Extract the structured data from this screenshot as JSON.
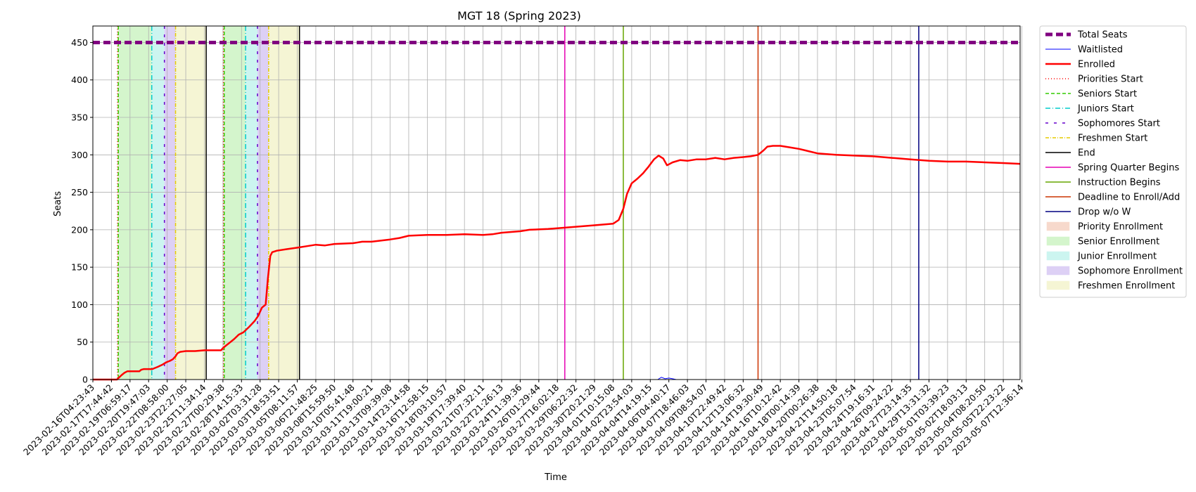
{
  "chart_data": {
    "type": "line",
    "title": "MGT 18 (Spring 2023)",
    "xlabel": "Time",
    "ylabel": "Seats",
    "ylim": [
      0,
      472
    ],
    "yticks": [
      0,
      50,
      100,
      150,
      200,
      250,
      300,
      350,
      400,
      450
    ],
    "grid": true,
    "legend_position": "outside right",
    "x_tick_labels": [
      "2023-02-16T04:23:43",
      "2023-02-17T17:44:42",
      "2023-02-19T06:59:17",
      "2023-02-20T19:47:03",
      "2023-02-22T08:58:00",
      "2023-02-23T22:27:05",
      "2023-02-25T11:34:14",
      "2023-02-27T00:29:38",
      "2023-02-28T14:15:33",
      "2023-03-02T03:31:28",
      "2023-03-03T18:53:51",
      "2023-03-05T08:11:57",
      "2023-03-06T21:48:25",
      "2023-03-08T15:59:50",
      "2023-03-10T05:41:48",
      "2023-03-11T19:00:21",
      "2023-03-13T09:39:08",
      "2023-03-14T23:14:58",
      "2023-03-16T12:58:15",
      "2023-03-18T03:10:57",
      "2023-03-19T17:39:40",
      "2023-03-21T07:32:11",
      "2023-03-22T21:26:13",
      "2023-03-24T11:39:36",
      "2023-03-26T01:29:44",
      "2023-03-27T16:02:18",
      "2023-03-29T06:22:32",
      "2023-03-30T20:21:29",
      "2023-04-01T10:15:08",
      "2023-04-02T23:54:03",
      "2023-04-04T14:19:15",
      "2023-04-06T04:40:17",
      "2023-04-07T18:46:03",
      "2023-04-09T08:54:07",
      "2023-04-10T22:49:42",
      "2023-04-12T13:06:32",
      "2023-04-14T19:30:49",
      "2023-04-16T10:12:42",
      "2023-04-18T00:14:39",
      "2023-04-20T00:26:38",
      "2023-04-21T14:50:18",
      "2023-04-23T05:07:54",
      "2023-04-24T19:16:31",
      "2023-04-26T09:24:22",
      "2023-04-27T23:14:35",
      "2023-04-29T13:31:32",
      "2023-05-01T03:39:23",
      "2023-05-02T18:03:13",
      "2023-05-04T08:20:50",
      "2023-05-05T22:23:22",
      "2023-05-07T12:36:14"
    ],
    "total_seats": 450,
    "enrolled": [
      [
        0,
        0
      ],
      [
        1.3,
        0
      ],
      [
        1.42,
        3
      ],
      [
        1.55,
        6
      ],
      [
        1.7,
        9
      ],
      [
        1.85,
        11
      ],
      [
        2.5,
        11
      ],
      [
        2.6,
        13
      ],
      [
        2.75,
        14
      ],
      [
        3.2,
        14
      ],
      [
        3.3,
        15
      ],
      [
        3.5,
        17
      ],
      [
        3.75,
        20
      ],
      [
        3.95,
        23
      ],
      [
        4.15,
        25
      ],
      [
        4.3,
        27
      ],
      [
        4.45,
        31
      ],
      [
        4.55,
        35
      ],
      [
        4.7,
        37
      ],
      [
        5.0,
        38
      ],
      [
        5.5,
        38
      ],
      [
        6.0,
        39
      ],
      [
        6.9,
        39
      ],
      [
        7.0,
        42
      ],
      [
        7.15,
        45
      ],
      [
        7.35,
        49
      ],
      [
        7.6,
        54
      ],
      [
        7.85,
        60
      ],
      [
        8.1,
        63
      ],
      [
        8.4,
        70
      ],
      [
        8.7,
        78
      ],
      [
        8.9,
        85
      ],
      [
        9.1,
        96
      ],
      [
        9.3,
        100
      ],
      [
        9.42,
        135
      ],
      [
        9.55,
        165
      ],
      [
        9.65,
        170
      ],
      [
        9.9,
        172
      ],
      [
        10.4,
        174
      ],
      [
        11,
        176
      ],
      [
        11.5,
        178
      ],
      [
        12,
        180
      ],
      [
        12.5,
        179
      ],
      [
        13,
        181
      ],
      [
        14,
        182
      ],
      [
        14.5,
        184
      ],
      [
        15,
        184
      ],
      [
        16,
        187
      ],
      [
        16.5,
        189
      ],
      [
        17,
        192
      ],
      [
        18,
        193
      ],
      [
        19,
        193
      ],
      [
        20,
        194
      ],
      [
        21,
        193
      ],
      [
        21.5,
        194
      ],
      [
        22,
        196
      ],
      [
        23,
        198
      ],
      [
        23.5,
        200
      ],
      [
        24.5,
        201
      ],
      [
        25,
        202
      ],
      [
        26,
        204
      ],
      [
        27,
        206
      ],
      [
        28,
        208
      ],
      [
        28.3,
        213
      ],
      [
        28.55,
        228
      ],
      [
        28.75,
        248
      ],
      [
        29,
        262
      ],
      [
        29.3,
        268
      ],
      [
        29.6,
        275
      ],
      [
        29.9,
        284
      ],
      [
        30.2,
        294
      ],
      [
        30.45,
        299
      ],
      [
        30.7,
        295
      ],
      [
        30.9,
        286
      ],
      [
        31.2,
        290
      ],
      [
        31.6,
        293
      ],
      [
        32,
        292
      ],
      [
        32.5,
        294
      ],
      [
        33,
        294
      ],
      [
        33.5,
        296
      ],
      [
        34,
        294
      ],
      [
        34.5,
        296
      ],
      [
        35,
        297
      ],
      [
        35.4,
        298
      ],
      [
        35.8,
        300
      ],
      [
        36.1,
        306
      ],
      [
        36.3,
        311
      ],
      [
        36.6,
        312
      ],
      [
        37,
        312
      ],
      [
        37.5,
        310
      ],
      [
        38,
        308
      ],
      [
        38.5,
        305
      ],
      [
        39,
        302
      ],
      [
        40,
        300
      ],
      [
        41,
        299
      ],
      [
        42,
        298
      ],
      [
        43,
        296
      ],
      [
        44,
        294
      ],
      [
        45,
        292
      ],
      [
        46,
        291
      ],
      [
        47,
        291
      ],
      [
        48,
        290
      ],
      [
        49,
        289
      ],
      [
        50,
        288
      ],
      [
        50.6,
        288
      ]
    ],
    "waitlisted": [
      [
        0,
        0
      ],
      [
        30.4,
        0
      ],
      [
        30.6,
        3
      ],
      [
        30.8,
        1
      ],
      [
        31.0,
        2
      ],
      [
        31.2,
        1
      ],
      [
        31.4,
        0
      ],
      [
        50.6,
        0
      ]
    ],
    "vertical_lines": [
      {
        "name": "Priorities Start",
        "x": 1.33
      },
      {
        "name": "Seniors Start",
        "x": 1.37
      },
      {
        "name": "Juniors Start",
        "x": 3.17
      },
      {
        "name": "Sophomores Start",
        "x": 3.85
      },
      {
        "name": "Freshmen Start",
        "x": 4.45
      },
      {
        "name": "End",
        "x": 6.1
      },
      {
        "name": "Priorities Start",
        "x": 7.03
      },
      {
        "name": "Seniors Start",
        "x": 7.07
      },
      {
        "name": "Juniors Start",
        "x": 8.22
      },
      {
        "name": "Sophomores Start",
        "x": 8.86
      },
      {
        "name": "Freshmen Start",
        "x": 9.46
      },
      {
        "name": "End",
        "x": 11.12
      },
      {
        "name": "Spring Quarter Begins",
        "x": 25.4
      },
      {
        "name": "Instruction Begins",
        "x": 28.55
      },
      {
        "name": "Deadline to Enroll/Add",
        "x": 35.8
      },
      {
        "name": "Drop w/o W",
        "x": 44.45
      }
    ],
    "shaded_regions": [
      {
        "name": "Priority Enrollment",
        "from": 1.33,
        "to": 1.37
      },
      {
        "name": "Senior Enrollment",
        "from": 1.37,
        "to": 3.17
      },
      {
        "name": "Junior Enrollment",
        "from": 3.17,
        "to": 3.85
      },
      {
        "name": "Sophomore Enrollment",
        "from": 3.85,
        "to": 4.45
      },
      {
        "name": "Freshmen Enrollment",
        "from": 4.45,
        "to": 6.1
      },
      {
        "name": "Priority Enrollment",
        "from": 7.03,
        "to": 7.07
      },
      {
        "name": "Senior Enrollment",
        "from": 7.07,
        "to": 8.22
      },
      {
        "name": "Junior Enrollment",
        "from": 8.22,
        "to": 8.86
      },
      {
        "name": "Sophomore Enrollment",
        "from": 8.86,
        "to": 9.46
      },
      {
        "name": "Freshmen Enrollment",
        "from": 9.46,
        "to": 11.12
      }
    ],
    "legend": [
      {
        "label": "Total Seats",
        "kind": "line",
        "color": "#800080",
        "dash": "10,5",
        "width": 5
      },
      {
        "label": "Waitlisted",
        "kind": "line",
        "color": "#0000ff",
        "dash": "",
        "width": 1
      },
      {
        "label": "Enrolled",
        "kind": "line",
        "color": "#ff0000",
        "dash": "",
        "width": 2.5
      },
      {
        "label": "Priorities Start",
        "kind": "line",
        "color": "#ff0000",
        "dash": "1,3",
        "width": 1.5
      },
      {
        "label": "Seniors Start",
        "kind": "line",
        "color": "#33cc00",
        "dash": "5,3",
        "width": 1.5
      },
      {
        "label": "Juniors Start",
        "kind": "line",
        "color": "#00cccc",
        "dash": "7,3,1,3",
        "width": 1.5
      },
      {
        "label": "Sophomores Start",
        "kind": "line",
        "color": "#6600cc",
        "dash": "4,8",
        "width": 1.5
      },
      {
        "label": "Freshmen Start",
        "kind": "line",
        "color": "#e6cc00",
        "dash": "5,2,1,2",
        "width": 1.5
      },
      {
        "label": "End",
        "kind": "line",
        "color": "#000000",
        "dash": "",
        "width": 1.5
      },
      {
        "label": "Spring Quarter Begins",
        "kind": "line",
        "color": "#e600b3",
        "dash": "",
        "width": 1.5
      },
      {
        "label": "Instruction Begins",
        "kind": "line",
        "color": "#66a600",
        "dash": "",
        "width": 1.5
      },
      {
        "label": "Deadline to Enroll/Add",
        "kind": "line",
        "color": "#cc3300",
        "dash": "",
        "width": 1.5
      },
      {
        "label": "Drop w/o W",
        "kind": "line",
        "color": "#000080",
        "dash": "",
        "width": 1.5
      },
      {
        "label": "Priority Enrollment",
        "kind": "patch",
        "color": "#f7d9cc"
      },
      {
        "label": "Senior Enrollment",
        "kind": "patch",
        "color": "#d4f5cc"
      },
      {
        "label": "Junior Enrollment",
        "kind": "patch",
        "color": "#ccf5f0"
      },
      {
        "label": "Sophomore Enrollment",
        "kind": "patch",
        "color": "#ddd0f5"
      },
      {
        "label": "Freshmen Enrollment",
        "kind": "patch",
        "color": "#f5f5d4"
      }
    ]
  }
}
